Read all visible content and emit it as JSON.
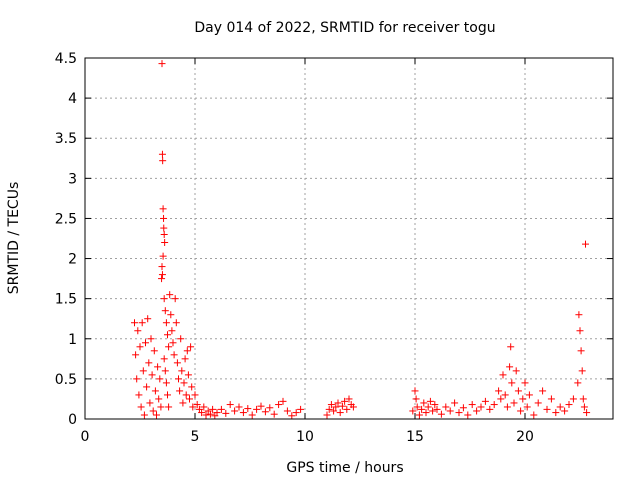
{
  "chart_data": {
    "type": "scatter",
    "title": "Day 014 of 2022, SRMTID for receiver togu",
    "xlabel": "GPS time / hours",
    "ylabel": "SRMTID / TECUs",
    "xlim": [
      0,
      24
    ],
    "ylim": [
      0,
      4.5
    ],
    "x_ticks": [
      0,
      5,
      10,
      15,
      20
    ],
    "x_tick_labels": [
      "0",
      "5",
      "10",
      "15",
      "20"
    ],
    "y_ticks": [
      0,
      0.5,
      1,
      1.5,
      2,
      2.5,
      3,
      3.5,
      4,
      4.5
    ],
    "y_tick_labels": [
      "0",
      "0.5",
      "1",
      "1.5",
      "2",
      "2.5",
      "3",
      "3.5",
      "4",
      "4.5"
    ],
    "grid": true,
    "marker": "plus",
    "color": "#ff0000",
    "series": [
      {
        "name": "SRMTID",
        "points": [
          [
            2.25,
            1.2
          ],
          [
            2.3,
            0.8
          ],
          [
            2.35,
            0.5
          ],
          [
            2.4,
            1.1
          ],
          [
            2.45,
            0.3
          ],
          [
            2.5,
            0.9
          ],
          [
            2.55,
            0.15
          ],
          [
            2.6,
            1.2
          ],
          [
            2.65,
            0.6
          ],
          [
            2.7,
            0.05
          ],
          [
            2.75,
            0.95
          ],
          [
            2.8,
            0.4
          ],
          [
            2.85,
            1.25
          ],
          [
            2.9,
            0.7
          ],
          [
            2.95,
            0.2
          ],
          [
            3.0,
            1.0
          ],
          [
            3.05,
            0.55
          ],
          [
            3.1,
            0.1
          ],
          [
            3.15,
            0.85
          ],
          [
            3.2,
            0.35
          ],
          [
            3.25,
            0.05
          ],
          [
            3.3,
            0.65
          ],
          [
            3.35,
            0.25
          ],
          [
            3.4,
            0.5
          ],
          [
            3.45,
            0.15
          ],
          [
            3.5,
            4.43
          ],
          [
            3.52,
            3.3
          ],
          [
            3.53,
            3.22
          ],
          [
            3.55,
            2.62
          ],
          [
            3.57,
            2.5
          ],
          [
            3.58,
            2.38
          ],
          [
            3.6,
            2.3
          ],
          [
            3.62,
            2.2
          ],
          [
            3.55,
            2.03
          ],
          [
            3.5,
            1.9
          ],
          [
            3.52,
            1.8
          ],
          [
            3.48,
            1.75
          ],
          [
            3.6,
            1.5
          ],
          [
            3.65,
            1.35
          ],
          [
            3.7,
            1.2
          ],
          [
            3.75,
            1.05
          ],
          [
            3.8,
            0.9
          ],
          [
            3.6,
            0.75
          ],
          [
            3.65,
            0.6
          ],
          [
            3.7,
            0.45
          ],
          [
            3.75,
            0.3
          ],
          [
            3.8,
            0.15
          ],
          [
            3.85,
            1.55
          ],
          [
            3.9,
            1.3
          ],
          [
            3.95,
            1.1
          ],
          [
            4.0,
            0.95
          ],
          [
            4.05,
            0.8
          ],
          [
            4.1,
            1.5
          ],
          [
            4.15,
            1.2
          ],
          [
            4.2,
            0.7
          ],
          [
            4.25,
            0.5
          ],
          [
            4.3,
            0.35
          ],
          [
            4.35,
            1.0
          ],
          [
            4.4,
            0.6
          ],
          [
            4.45,
            0.2
          ],
          [
            4.5,
            0.45
          ],
          [
            4.55,
            0.75
          ],
          [
            4.6,
            0.3
          ],
          [
            4.65,
            0.85
          ],
          [
            4.7,
            0.55
          ],
          [
            4.75,
            0.25
          ],
          [
            4.8,
            0.9
          ],
          [
            4.85,
            0.4
          ],
          [
            4.9,
            0.15
          ],
          [
            5.0,
            0.3
          ],
          [
            5.1,
            0.18
          ],
          [
            5.2,
            0.12
          ],
          [
            5.3,
            0.08
          ],
          [
            5.4,
            0.15
          ],
          [
            5.5,
            0.05
          ],
          [
            5.6,
            0.1
          ],
          [
            5.7,
            0.06
          ],
          [
            5.8,
            0.12
          ],
          [
            5.9,
            0.04
          ],
          [
            6.0,
            0.08
          ],
          [
            6.2,
            0.12
          ],
          [
            6.4,
            0.07
          ],
          [
            6.6,
            0.18
          ],
          [
            6.8,
            0.1
          ],
          [
            7.0,
            0.15
          ],
          [
            7.2,
            0.08
          ],
          [
            7.4,
            0.13
          ],
          [
            7.6,
            0.05
          ],
          [
            7.8,
            0.12
          ],
          [
            8.0,
            0.16
          ],
          [
            8.2,
            0.09
          ],
          [
            8.4,
            0.14
          ],
          [
            8.6,
            0.06
          ],
          [
            8.8,
            0.18
          ],
          [
            9.0,
            0.22
          ],
          [
            9.2,
            0.1
          ],
          [
            9.4,
            0.04
          ],
          [
            9.6,
            0.08
          ],
          [
            9.8,
            0.12
          ],
          [
            11.0,
            0.05
          ],
          [
            11.1,
            0.12
          ],
          [
            11.2,
            0.18
          ],
          [
            11.3,
            0.1
          ],
          [
            11.4,
            0.15
          ],
          [
            11.5,
            0.2
          ],
          [
            11.6,
            0.08
          ],
          [
            11.7,
            0.16
          ],
          [
            11.8,
            0.22
          ],
          [
            11.9,
            0.12
          ],
          [
            12.0,
            0.25
          ],
          [
            12.1,
            0.18
          ],
          [
            12.2,
            0.15
          ],
          [
            14.9,
            0.1
          ],
          [
            15.0,
            0.35
          ],
          [
            15.05,
            0.25
          ],
          [
            15.1,
            0.15
          ],
          [
            15.2,
            0.05
          ],
          [
            15.3,
            0.12
          ],
          [
            15.4,
            0.2
          ],
          [
            15.5,
            0.08
          ],
          [
            15.6,
            0.15
          ],
          [
            15.7,
            0.22
          ],
          [
            15.8,
            0.1
          ],
          [
            15.9,
            0.18
          ],
          [
            16.0,
            0.12
          ],
          [
            16.2,
            0.06
          ],
          [
            16.4,
            0.15
          ],
          [
            16.6,
            0.1
          ],
          [
            16.8,
            0.2
          ],
          [
            17.0,
            0.08
          ],
          [
            17.2,
            0.14
          ],
          [
            17.4,
            0.05
          ],
          [
            17.6,
            0.18
          ],
          [
            17.8,
            0.1
          ],
          [
            18.0,
            0.15
          ],
          [
            18.2,
            0.22
          ],
          [
            18.4,
            0.12
          ],
          [
            18.6,
            0.18
          ],
          [
            18.8,
            0.35
          ],
          [
            18.9,
            0.25
          ],
          [
            19.0,
            0.55
          ],
          [
            19.1,
            0.3
          ],
          [
            19.2,
            0.15
          ],
          [
            19.3,
            0.65
          ],
          [
            19.35,
            0.9
          ],
          [
            19.4,
            0.45
          ],
          [
            19.5,
            0.2
          ],
          [
            19.6,
            0.6
          ],
          [
            19.7,
            0.35
          ],
          [
            19.8,
            0.1
          ],
          [
            19.9,
            0.25
          ],
          [
            20.0,
            0.45
          ],
          [
            20.1,
            0.15
          ],
          [
            20.2,
            0.3
          ],
          [
            20.4,
            0.05
          ],
          [
            20.6,
            0.2
          ],
          [
            20.8,
            0.35
          ],
          [
            21.0,
            0.12
          ],
          [
            21.2,
            0.25
          ],
          [
            21.4,
            0.08
          ],
          [
            21.6,
            0.15
          ],
          [
            21.8,
            0.1
          ],
          [
            22.0,
            0.18
          ],
          [
            22.2,
            0.25
          ],
          [
            22.4,
            0.45
          ],
          [
            22.45,
            1.3
          ],
          [
            22.5,
            1.1
          ],
          [
            22.55,
            0.85
          ],
          [
            22.6,
            0.6
          ],
          [
            22.65,
            0.25
          ],
          [
            22.7,
            0.15
          ],
          [
            22.8,
            0.08
          ],
          [
            22.75,
            2.18
          ]
        ]
      }
    ]
  }
}
